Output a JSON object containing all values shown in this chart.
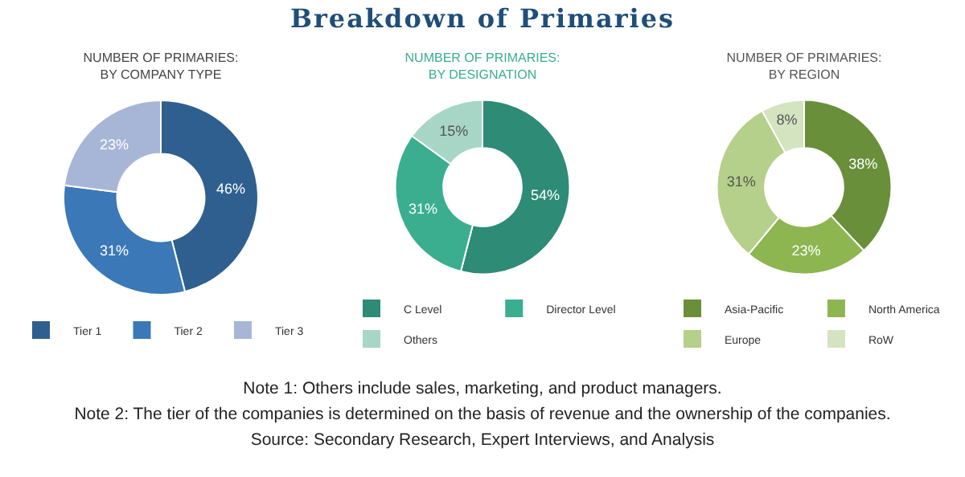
{
  "chart_data": [
    {
      "type": "other",
      "title": "Breakdown of Primaries"
    },
    {
      "type": "donut",
      "title": "NUMBER OF PRIMARIES:\nBY COMPANY TYPE",
      "categories": [
        "Tier 1",
        "Tier 2",
        "Tier 3"
      ],
      "values": [
        46,
        31,
        23
      ],
      "value_labels": [
        "46%",
        "31%",
        "23%"
      ],
      "colors": [
        "#2e5f8f",
        "#3a78b8",
        "#a7b6d6"
      ],
      "legend": "bottom"
    },
    {
      "type": "donut",
      "title": "NUMBER OF PRIMARIES:\nBY DESIGNATION",
      "categories": [
        "C Level",
        "Director Level",
        "Others"
      ],
      "values": [
        54,
        31,
        15
      ],
      "value_labels": [
        "54%",
        "31%",
        "15%"
      ],
      "colors": [
        "#2e8b75",
        "#3aae8f",
        "#a8d6c6"
      ],
      "legend": "bottom"
    },
    {
      "type": "donut",
      "title": "NUMBER OF PRIMARIES:\nBY REGION",
      "categories": [
        "Asia-Pacific",
        "North America",
        "Europe",
        "RoW"
      ],
      "values": [
        38,
        23,
        31,
        8
      ],
      "value_labels": [
        "38%",
        "23%",
        "31%",
        "8%"
      ],
      "colors": [
        "#6a8f3a",
        "#8db650",
        "#b4d08a",
        "#d4e3c0"
      ],
      "legend": "bottom"
    },
    {
      "type": "other",
      "annotations": [
        "Note 1: Others include sales, marketing, and product managers.",
        "Note 2: The tier of the companies is determined on the basis of revenue and the ownership of the companies.",
        "Source: Secondary Research, Expert Interviews, and Analysis"
      ]
    }
  ]
}
